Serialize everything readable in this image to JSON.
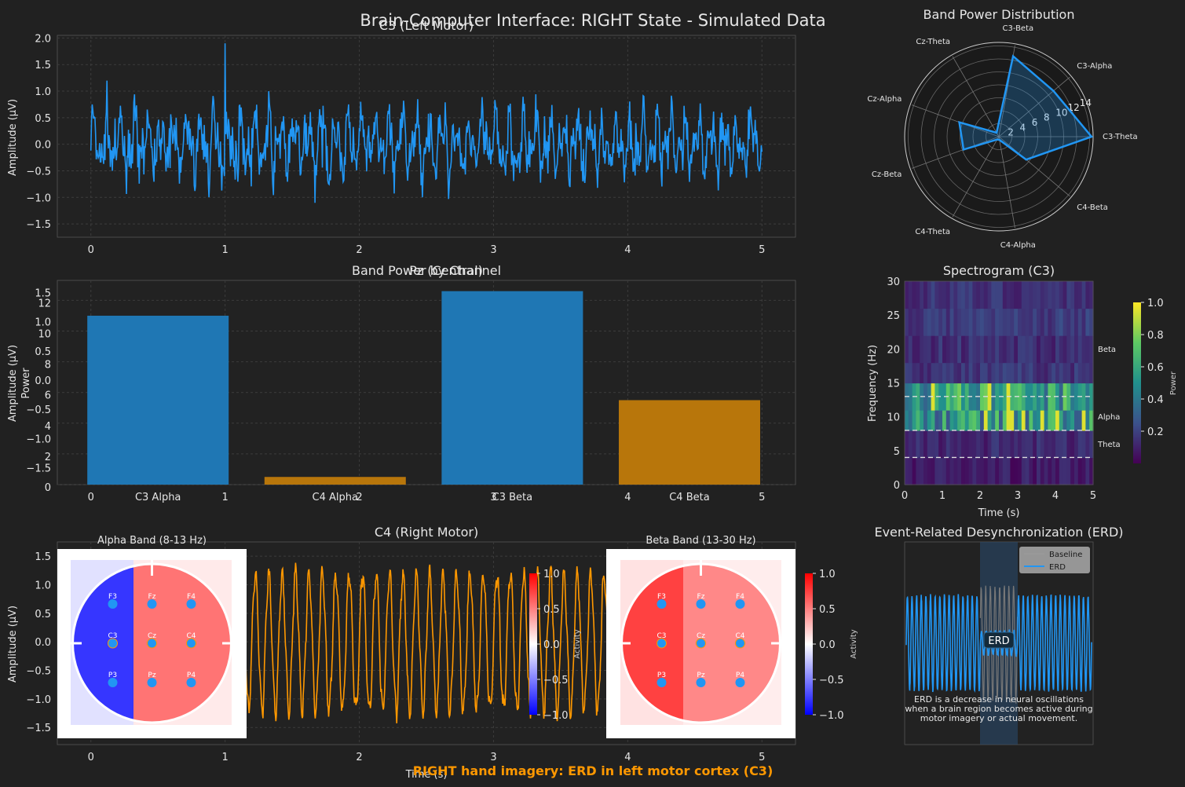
{
  "figure": {
    "suptitle": "Brain-Computer Interface: RIGHT State - Simulated Data",
    "footer": "RIGHT hand imagery: ERD in left motor cortex (C3)",
    "colors": {
      "background": "#212121",
      "blue": "#2196f3",
      "orange": "#ff9800",
      "bar_blue": "#1f77b4",
      "bar_orange": "#b8760b"
    }
  },
  "chart_data": [
    {
      "id": "c3",
      "type": "line",
      "title": "C3 (Left Motor)",
      "xlabel": "",
      "ylabel": "Amplitude (µV)",
      "xlim": [
        -0.25,
        5.25
      ],
      "ylim": [
        -1.75,
        2.05
      ],
      "xticks": [
        "0",
        "1",
        "2",
        "3",
        "4",
        "5"
      ],
      "yticks": [
        "−1.5",
        "−1.0",
        "−0.5",
        "0.0",
        "0.5",
        "1.0",
        "1.5",
        "2.0"
      ],
      "grid": true,
      "x_range": [
        0,
        5
      ],
      "y_range": [
        -1.6,
        1.9
      ],
      "peak": {
        "x": 1.0,
        "y": 1.9
      }
    },
    {
      "id": "bar",
      "type": "bar",
      "title": "Band Power by Channel",
      "overlapping_title": "Pz (Central)",
      "ylabel": "Power",
      "overlapping_ylabel": "Amplitude (µV)",
      "categories": [
        "C3 Alpha",
        "C4 Alpha",
        "C3 Beta",
        "C4 Beta"
      ],
      "values": [
        11.0,
        0.5,
        12.6,
        5.5
      ],
      "ylim": [
        0,
        13.3
      ],
      "yticks": [
        "0",
        "2",
        "4",
        "6",
        "8",
        "10",
        "12"
      ],
      "overlapping_yticks": [
        "−1.5",
        "−1.0",
        "−0.5",
        "0.0",
        "0.5",
        "1.0",
        "1.5"
      ],
      "xticks": [
        "0",
        "1",
        "2",
        "3",
        "4",
        "5"
      ],
      "grid": true
    },
    {
      "id": "c4",
      "type": "line",
      "title": "C4 (Right Motor)",
      "xlabel": "Time (s)",
      "ylabel": "Amplitude (µV)",
      "xlim": [
        -0.25,
        5.25
      ],
      "ylim": [
        -1.8,
        1.75
      ],
      "xticks": [
        "0",
        "1",
        "2",
        "3",
        "4",
        "5"
      ],
      "yticks": [
        "−1.5",
        "−1.0",
        "−0.5",
        "0.0",
        "0.5",
        "1.0",
        "1.5"
      ],
      "grid": true,
      "frequency_hz": 10,
      "amplitude": 1.4
    },
    {
      "id": "radar",
      "type": "line",
      "title": "Band Power Distribution",
      "categories": [
        "C3-Theta",
        "C3-Alpha",
        "C3-Beta",
        "Cz-Theta",
        "Cz-Alpha",
        "Cz-Beta",
        "C4-Theta",
        "C4-Alpha",
        "C4-Beta"
      ],
      "values": [
        14.3,
        11.0,
        12.6,
        0.7,
        6.5,
        5.8,
        0.5,
        0.5,
        5.5
      ],
      "rticks": [
        "2",
        "4",
        "6",
        "8",
        "10",
        "12",
        "14"
      ],
      "rmax": 14.3
    },
    {
      "id": "spectrogram",
      "type": "heatmap",
      "title": "Spectrogram (C3)",
      "xlabel": "Time (s)",
      "ylabel": "Frequency (Hz)",
      "xticks": [
        "0",
        "1",
        "2",
        "3",
        "4",
        "5"
      ],
      "yticks": [
        "0",
        "5",
        "10",
        "15",
        "20",
        "25",
        "30"
      ],
      "band_labels": [
        "Beta",
        "Alpha",
        "Theta"
      ],
      "band_lines_hz": [
        4,
        8,
        13
      ],
      "colorbar_label": "Power",
      "colorbar_ticks": [
        "0.2",
        "0.4",
        "0.6",
        "0.8",
        "1.0"
      ],
      "xlim": [
        0,
        5
      ],
      "ylim": [
        0,
        30
      ],
      "freq_bins": [
        0,
        4,
        8,
        11,
        15,
        18,
        22,
        26,
        30
      ],
      "time_bins": 50,
      "levels": [
        0.08,
        0.12,
        0.5,
        0.55,
        0.16,
        0.14,
        0.18,
        0.15
      ]
    },
    {
      "id": "erd",
      "type": "line",
      "title": "Event-Related Desynchronization (ERD)",
      "legend": [
        "Baseline",
        "ERD"
      ],
      "legend_location": "top-right",
      "annotation": "ERD",
      "note": [
        "ERD is a decrease in neural oscillations",
        "when a brain region becomes active during",
        "motor imagery or actual movement."
      ],
      "erd_window": [
        0.4,
        0.6
      ],
      "baseline_amplitude": 0.6,
      "erd_amplitude": 0.15
    }
  ],
  "topomaps": [
    {
      "id": "alpha",
      "title": "Alpha Band (8-13 Hz)",
      "colorbar_label": "Activity",
      "colorbar_ticks": [
        "1.0",
        "0.5",
        "0.0",
        "−0.5",
        "−1.0"
      ],
      "left_color": "#2020ff",
      "right_color": "#ff5c5c"
    },
    {
      "id": "beta",
      "title": "Beta Band (13-30 Hz)",
      "colorbar_label": "Activity",
      "colorbar_ticks": [
        "1.0",
        "0.5",
        "0.0",
        "−0.5",
        "−1.0"
      ],
      "left_color": "#ff2020",
      "right_color": "#ff6a6a"
    }
  ],
  "electrodes": [
    "F3",
    "Fz",
    "F4",
    "C3",
    "Cz",
    "C4",
    "P3",
    "Pz",
    "P4"
  ]
}
